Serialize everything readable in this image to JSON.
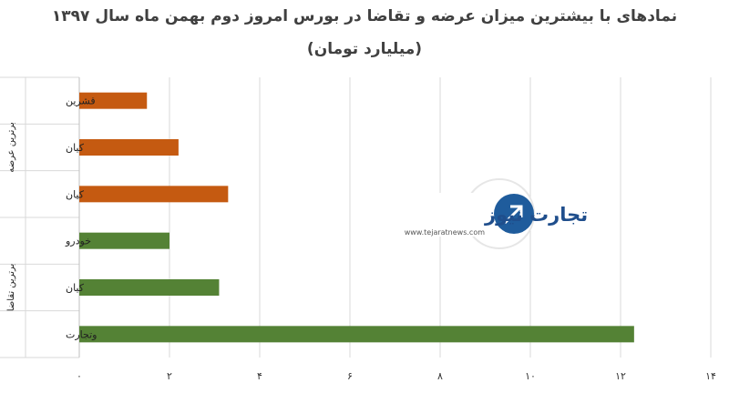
{
  "title_line1": "نمادهای با بیشترین میزان عرضه و تقاضا در بورس امروز دوم بهمن ماه سال ۱۳۹۷",
  "title_line2": "(میلیارد تومان)",
  "logo": {
    "brand": "تجارت نیوز",
    "url": "www.tejaratnews.com"
  },
  "colors": {
    "supply": "#c55a11",
    "demand": "#548235",
    "grid": "#d9d9d9"
  },
  "chart_data": {
    "type": "bar",
    "orientation": "horizontal",
    "title": "نمادهای با بیشترین میزان عرضه و تقاضا در بورس امروز دوم بهمن ماه سال ۱۳۹۷",
    "subtitle": "(میلیارد تومان)",
    "groups": [
      {
        "label": "برترین عرضه",
        "color": "#c55a11",
        "categories": [
          "قشرین",
          "کیان",
          "کیان"
        ],
        "values": [
          1.5,
          2.2,
          3.3
        ]
      },
      {
        "label": "برترین تقاضا",
        "color": "#548235",
        "categories": [
          "خودرو",
          "کیان",
          "وتجارت"
        ],
        "values": [
          2.0,
          3.1,
          12.3
        ]
      }
    ],
    "xlim": [
      0,
      14
    ],
    "xticks": [
      0,
      2,
      4,
      6,
      8,
      10,
      12,
      14
    ],
    "xtick_labels": [
      "۰",
      "۲",
      "۴",
      "۶",
      "۸",
      "۱۰",
      "۱۲",
      "۱۴"
    ],
    "grid": true
  }
}
